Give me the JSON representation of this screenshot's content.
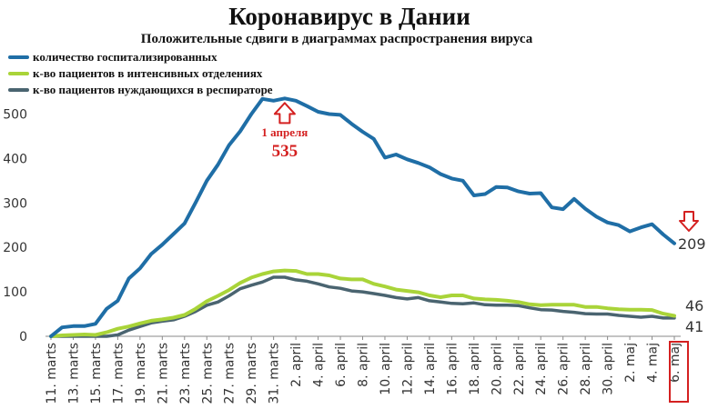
{
  "chart_data": {
    "type": "line",
    "title": "Коронавирус в Дании",
    "subtitle": "Положительные сдвиги в диаграммах распространения вируса",
    "ylim": [
      0,
      550
    ],
    "yticks": [
      0,
      100,
      200,
      300,
      400,
      500
    ],
    "x": [
      "11. marts",
      "12. marts",
      "13. marts",
      "14. marts",
      "15. marts",
      "16. marts",
      "17. marts",
      "18. marts",
      "19. marts",
      "20. marts",
      "21. marts",
      "22. marts",
      "23. marts",
      "24. marts",
      "25. marts",
      "26. marts",
      "27. marts",
      "28. marts",
      "29. marts",
      "30. marts",
      "31. marts",
      "1. april",
      "2. april",
      "3. april",
      "4. april",
      "5. april",
      "6. april",
      "7. april",
      "8. april",
      "9. april",
      "10. april",
      "11. april",
      "12. april",
      "13. april",
      "14. april",
      "15. april",
      "16. april",
      "17. april",
      "18. april",
      "19. april",
      "20. april",
      "21. april",
      "22. april",
      "23. april",
      "24. april",
      "25. april",
      "26. april",
      "27. april",
      "28. april",
      "29. april",
      "30. april",
      "1. maj",
      "2. maj",
      "3. maj",
      "4. maj",
      "5. maj",
      "6. maj"
    ],
    "xtick_labels": [
      "11. marts",
      "13. marts",
      "15. marts",
      "17. marts",
      "19. marts",
      "21. marts",
      "23. marts",
      "25. marts",
      "27. marts",
      "29. marts",
      "31. marts",
      "2. april",
      "4. april",
      "6. april",
      "8. april",
      "10. april",
      "12. april",
      "14. april",
      "16. april",
      "18. april",
      "20. april",
      "22. april",
      "24. april",
      "26. april",
      "28. april",
      "30. april",
      "2. maj",
      "4. maj",
      "6. maj"
    ],
    "series": [
      {
        "name": "количество госпитализированных",
        "color": "#1f6ea6",
        "values": [
          0,
          20,
          23,
          23,
          28,
          62,
          80,
          130,
          153,
          185,
          206,
          230,
          254,
          301,
          350,
          386,
          430,
          461,
          500,
          534,
          530,
          535,
          530,
          518,
          505,
          500,
          498,
          478,
          460,
          444,
          402,
          409,
          398,
          390,
          380,
          365,
          355,
          350,
          317,
          320,
          336,
          335,
          326,
          321,
          322,
          290,
          286,
          309,
          287,
          269,
          256,
          250,
          236,
          245,
          252,
          229,
          209
        ]
      },
      {
        "name": "к-во пациентов в интенсивных отделениях",
        "color": "#a9d439",
        "values": [
          0,
          2,
          3,
          4,
          3,
          9,
          17,
          22,
          29,
          35,
          38,
          42,
          48,
          62,
          79,
          91,
          104,
          120,
          132,
          140,
          146,
          148,
          147,
          140,
          140,
          137,
          130,
          128,
          128,
          118,
          112,
          105,
          102,
          99,
          92,
          88,
          92,
          92,
          85,
          83,
          82,
          80,
          77,
          72,
          70,
          71,
          71,
          71,
          66,
          66,
          63,
          61,
          60,
          60,
          59,
          51,
          46
        ]
      },
      {
        "name": "к-во пациентов нуждающихся в респираторе",
        "color": "#4a6470",
        "values": [
          0,
          0,
          0,
          0,
          0,
          0,
          3,
          14,
          22,
          30,
          34,
          37,
          45,
          56,
          70,
          77,
          91,
          107,
          115,
          122,
          133,
          133,
          127,
          124,
          118,
          111,
          108,
          102,
          100,
          96,
          92,
          87,
          84,
          87,
          80,
          77,
          74,
          73,
          75,
          71,
          70,
          70,
          69,
          64,
          60,
          59,
          56,
          54,
          51,
          50,
          50,
          47,
          45,
          43,
          45,
          41,
          41
        ]
      }
    ],
    "annotations": [
      {
        "label": "1 апреля",
        "value": "535",
        "color": "#d42020"
      },
      {
        "value": "209",
        "series": 0
      },
      {
        "value": "46",
        "series": 1
      },
      {
        "value": "41",
        "series": 2
      }
    ],
    "legend": "top-left",
    "grid": false
  }
}
